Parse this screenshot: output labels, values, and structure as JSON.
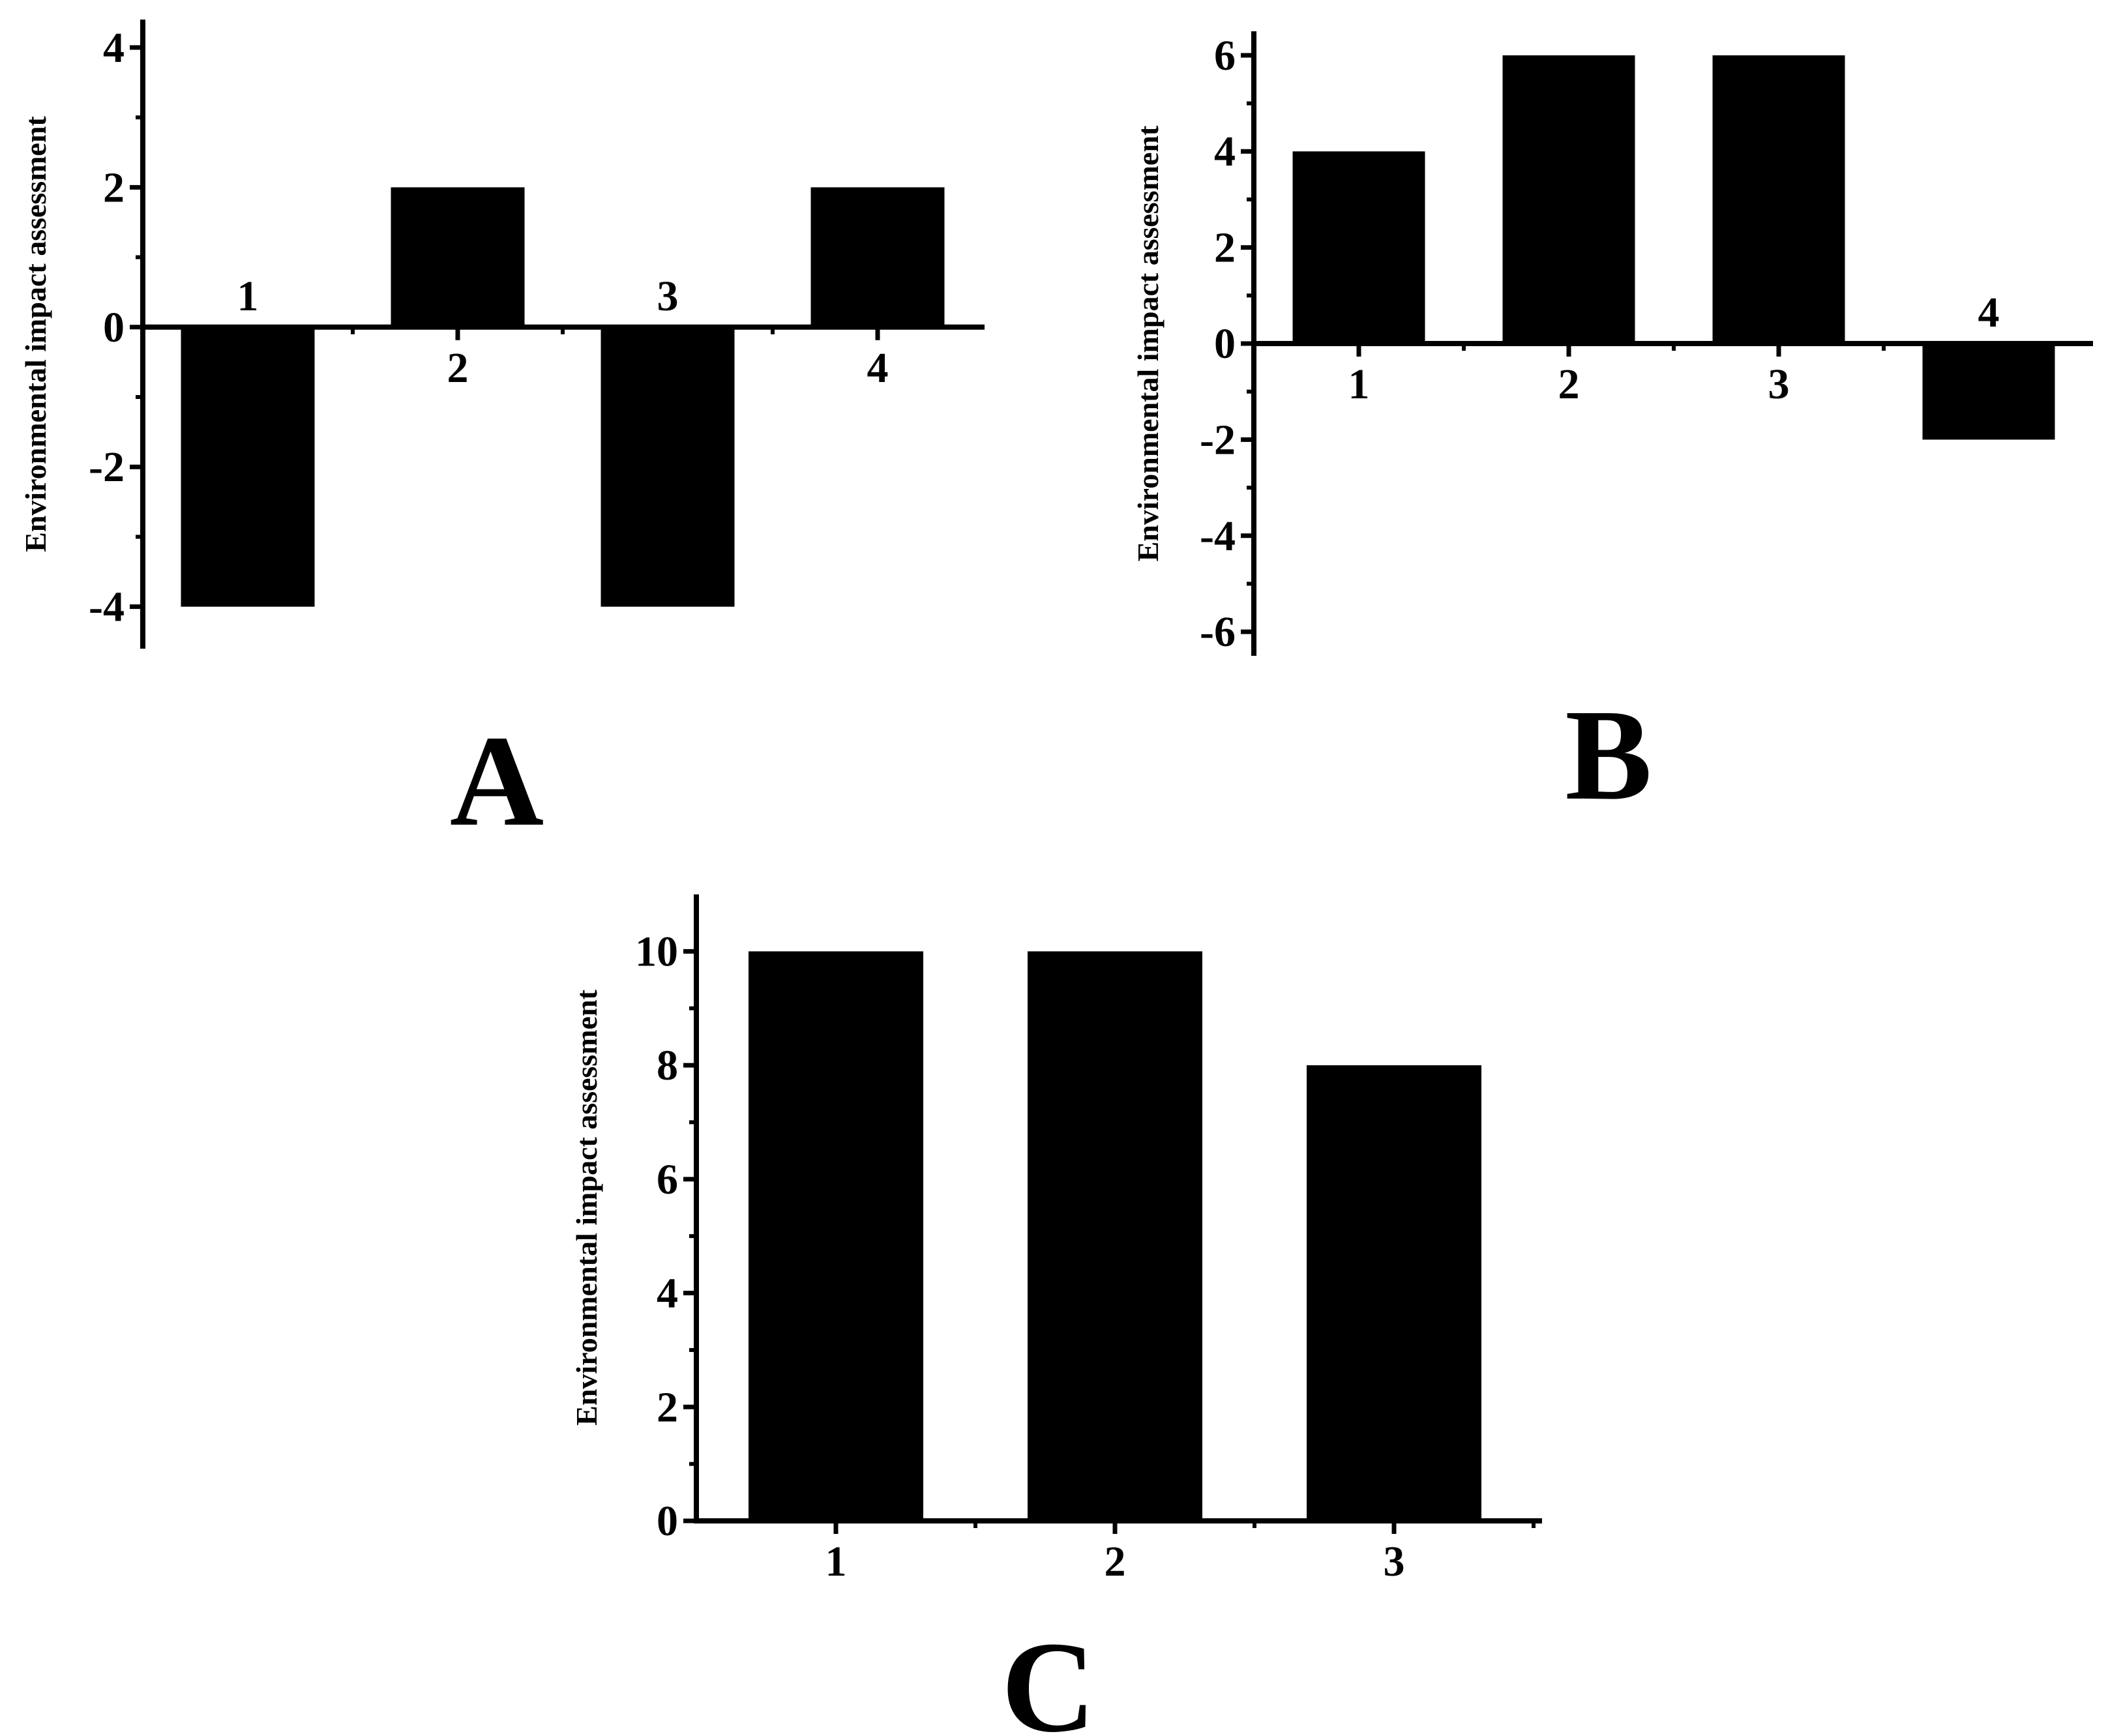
{
  "colors": {
    "bar": "#000000",
    "axis": "#000000",
    "background": "#ffffff"
  },
  "chart_data": [
    {
      "panel": "A",
      "type": "bar",
      "categories": [
        "1",
        "2",
        "3",
        "4"
      ],
      "values": [
        -4,
        2,
        -4,
        2
      ],
      "title": "",
      "xlabel": "",
      "ylabel": "Environmental impact assessment",
      "ylim": [
        -4.6,
        4.4
      ],
      "yticks": [
        -4,
        -2,
        0,
        2,
        4
      ],
      "category_labels_at_zero_line": true,
      "grid": false,
      "legend": "none"
    },
    {
      "panel": "B",
      "type": "bar",
      "categories": [
        "1",
        "2",
        "3",
        "4"
      ],
      "values": [
        4,
        6,
        6,
        -2
      ],
      "title": "",
      "xlabel": "",
      "ylabel": "Environmental impact assessment",
      "ylim": [
        -6.5,
        6.5
      ],
      "yticks": [
        -6,
        -4,
        -2,
        0,
        2,
        4,
        6
      ],
      "category_labels_at_zero_line": true,
      "grid": false,
      "legend": "none"
    },
    {
      "panel": "C",
      "type": "bar",
      "categories": [
        "1",
        "2",
        "3"
      ],
      "values": [
        10,
        10,
        8
      ],
      "title": "",
      "xlabel": "",
      "ylabel": "Environmental impact assessment",
      "ylim": [
        0,
        11
      ],
      "yticks": [
        0,
        2,
        4,
        6,
        8,
        10
      ],
      "category_labels_at_zero_line": false,
      "grid": false,
      "legend": "none"
    }
  ]
}
